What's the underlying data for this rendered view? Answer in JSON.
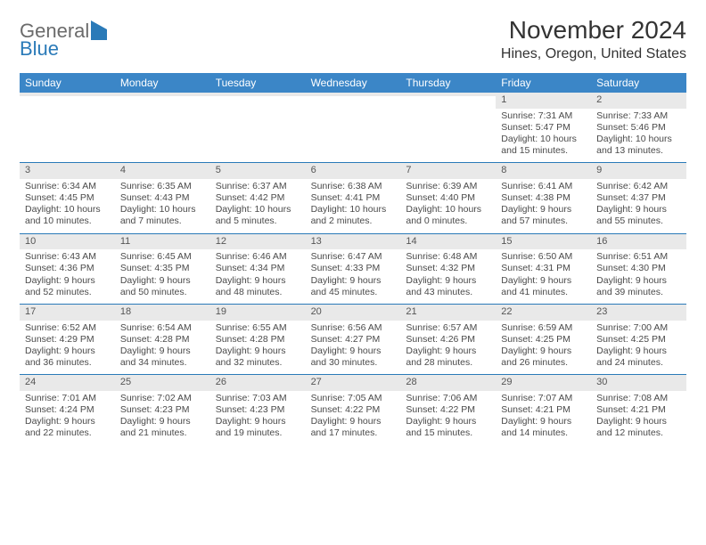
{
  "brand": {
    "part1": "General",
    "part2": "Blue"
  },
  "title": "November 2024",
  "location": "Hines, Oregon, United States",
  "colors": {
    "header_bg": "#3b86c7",
    "header_text": "#ffffff",
    "daynum_bg": "#e9e9e9",
    "week_sep": "#2a7ab8",
    "brand_gray": "#6b6b6b",
    "brand_blue": "#2a7ab8",
    "text": "#333333",
    "cell_text": "#4a4a4a",
    "background": "#ffffff"
  },
  "dow": [
    "Sunday",
    "Monday",
    "Tuesday",
    "Wednesday",
    "Thursday",
    "Friday",
    "Saturday"
  ],
  "first_dow": 5,
  "days": [
    {
      "n": 1,
      "sr": "7:31 AM",
      "ss": "5:47 PM",
      "dl": "10 hours and 15 minutes."
    },
    {
      "n": 2,
      "sr": "7:33 AM",
      "ss": "5:46 PM",
      "dl": "10 hours and 13 minutes."
    },
    {
      "n": 3,
      "sr": "6:34 AM",
      "ss": "4:45 PM",
      "dl": "10 hours and 10 minutes."
    },
    {
      "n": 4,
      "sr": "6:35 AM",
      "ss": "4:43 PM",
      "dl": "10 hours and 7 minutes."
    },
    {
      "n": 5,
      "sr": "6:37 AM",
      "ss": "4:42 PM",
      "dl": "10 hours and 5 minutes."
    },
    {
      "n": 6,
      "sr": "6:38 AM",
      "ss": "4:41 PM",
      "dl": "10 hours and 2 minutes."
    },
    {
      "n": 7,
      "sr": "6:39 AM",
      "ss": "4:40 PM",
      "dl": "10 hours and 0 minutes."
    },
    {
      "n": 8,
      "sr": "6:41 AM",
      "ss": "4:38 PM",
      "dl": "9 hours and 57 minutes."
    },
    {
      "n": 9,
      "sr": "6:42 AM",
      "ss": "4:37 PM",
      "dl": "9 hours and 55 minutes."
    },
    {
      "n": 10,
      "sr": "6:43 AM",
      "ss": "4:36 PM",
      "dl": "9 hours and 52 minutes."
    },
    {
      "n": 11,
      "sr": "6:45 AM",
      "ss": "4:35 PM",
      "dl": "9 hours and 50 minutes."
    },
    {
      "n": 12,
      "sr": "6:46 AM",
      "ss": "4:34 PM",
      "dl": "9 hours and 48 minutes."
    },
    {
      "n": 13,
      "sr": "6:47 AM",
      "ss": "4:33 PM",
      "dl": "9 hours and 45 minutes."
    },
    {
      "n": 14,
      "sr": "6:48 AM",
      "ss": "4:32 PM",
      "dl": "9 hours and 43 minutes."
    },
    {
      "n": 15,
      "sr": "6:50 AM",
      "ss": "4:31 PM",
      "dl": "9 hours and 41 minutes."
    },
    {
      "n": 16,
      "sr": "6:51 AM",
      "ss": "4:30 PM",
      "dl": "9 hours and 39 minutes."
    },
    {
      "n": 17,
      "sr": "6:52 AM",
      "ss": "4:29 PM",
      "dl": "9 hours and 36 minutes."
    },
    {
      "n": 18,
      "sr": "6:54 AM",
      "ss": "4:28 PM",
      "dl": "9 hours and 34 minutes."
    },
    {
      "n": 19,
      "sr": "6:55 AM",
      "ss": "4:28 PM",
      "dl": "9 hours and 32 minutes."
    },
    {
      "n": 20,
      "sr": "6:56 AM",
      "ss": "4:27 PM",
      "dl": "9 hours and 30 minutes."
    },
    {
      "n": 21,
      "sr": "6:57 AM",
      "ss": "4:26 PM",
      "dl": "9 hours and 28 minutes."
    },
    {
      "n": 22,
      "sr": "6:59 AM",
      "ss": "4:25 PM",
      "dl": "9 hours and 26 minutes."
    },
    {
      "n": 23,
      "sr": "7:00 AM",
      "ss": "4:25 PM",
      "dl": "9 hours and 24 minutes."
    },
    {
      "n": 24,
      "sr": "7:01 AM",
      "ss": "4:24 PM",
      "dl": "9 hours and 22 minutes."
    },
    {
      "n": 25,
      "sr": "7:02 AM",
      "ss": "4:23 PM",
      "dl": "9 hours and 21 minutes."
    },
    {
      "n": 26,
      "sr": "7:03 AM",
      "ss": "4:23 PM",
      "dl": "9 hours and 19 minutes."
    },
    {
      "n": 27,
      "sr": "7:05 AM",
      "ss": "4:22 PM",
      "dl": "9 hours and 17 minutes."
    },
    {
      "n": 28,
      "sr": "7:06 AM",
      "ss": "4:22 PM",
      "dl": "9 hours and 15 minutes."
    },
    {
      "n": 29,
      "sr": "7:07 AM",
      "ss": "4:21 PM",
      "dl": "9 hours and 14 minutes."
    },
    {
      "n": 30,
      "sr": "7:08 AM",
      "ss": "4:21 PM",
      "dl": "9 hours and 12 minutes."
    }
  ],
  "labels": {
    "sunrise": "Sunrise:",
    "sunset": "Sunset:",
    "daylight": "Daylight:"
  }
}
